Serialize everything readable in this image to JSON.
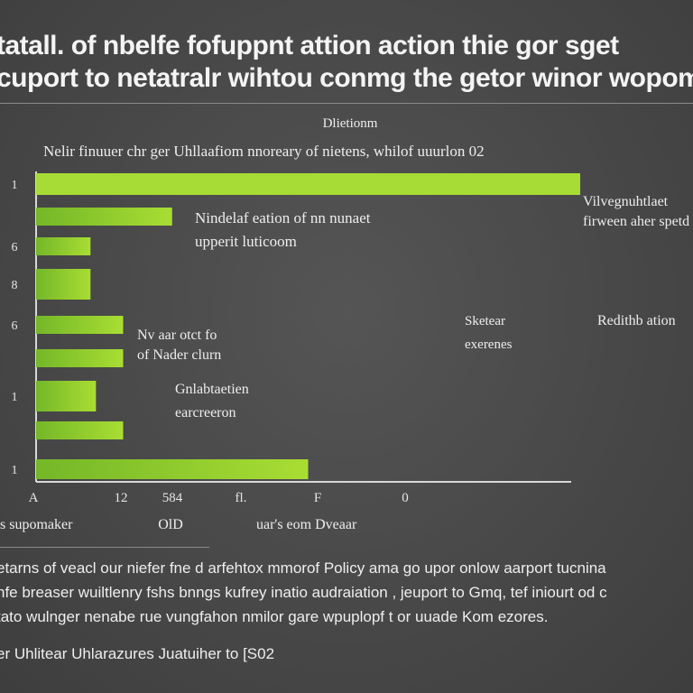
{
  "header": {
    "title_line1": "tatall. of nbelfe fofuppnt attion action thie gor sget",
    "title_line2": "cuport to netatralr wihtou conmg the getor winor wopom"
  },
  "chart_data": {
    "type": "bar",
    "orientation": "horizontal",
    "colors": {
      "bar": "#8fcf2a",
      "bar_highlight": "#a6dc35"
    },
    "top_label": "Dlietionm",
    "subtitle": "Nelir finuuer chr ger Uhllaafiom nnoreary of nietens, whilof uuurlon 02",
    "values": [
      100,
      25,
      10,
      10,
      16,
      16,
      11,
      16,
      50
    ],
    "y_tick_labels": [
      "1",
      "",
      "6",
      "8",
      "6",
      "",
      "1",
      "",
      "1"
    ],
    "x_tick_labels": [
      "A",
      "12",
      "584",
      "fl.",
      "F",
      "0"
    ],
    "x_axis_label_left": "s supomaker",
    "x_axis_label_mid": "OlD",
    "x_axis_label_right": "uar's eom Dveaar",
    "annotations": [
      "Nindelaf eation of nn nunaet\nupperit luticoom",
      "Nv aar otct fo\nof Nader clurn",
      "Gnlabtaetien\nearcreeron",
      "Vilvegnuhtlaet\nfirween aher spetd",
      "Sketear\nexerenes",
      "Redithb ation"
    ]
  },
  "footer": {
    "line1": "etarns of veacl our niefer fne d arfehtox mmorof Policy ama go upor onlow aarport tucnina",
    "line2": "nfe breaser wuiltlenry fshs bnngs kufrey inatio audraiation , jeuport to Gmq, tef iniourt od c",
    "line3": "tato wulnger nenabe rue vungfahon nmilor gare wpuplopf t or uuade Kom ezores.",
    "line4": "er Uhlitear Uhlarazures Juatuiher to [S02"
  }
}
